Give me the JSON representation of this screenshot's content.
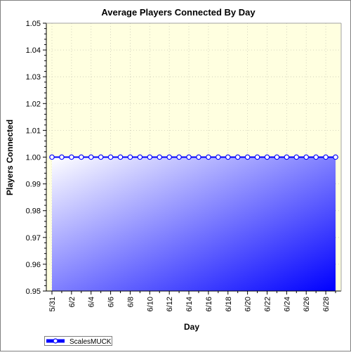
{
  "chart_data": {
    "type": "area",
    "title": "Average Players Connected By Day",
    "xlabel": "Day",
    "ylabel": "Players Connected",
    "ylim": [
      0.95,
      1.05
    ],
    "yticks": [
      "0.95",
      "0.96",
      "0.97",
      "0.98",
      "0.99",
      "1.00",
      "1.01",
      "1.02",
      "1.03",
      "1.04",
      "1.05"
    ],
    "grid": true,
    "legend_position": "bottom-left",
    "x": [
      "5/31",
      "6/1",
      "6/2",
      "6/3",
      "6/4",
      "6/5",
      "6/6",
      "6/7",
      "6/8",
      "6/9",
      "6/10",
      "6/11",
      "6/12",
      "6/13",
      "6/14",
      "6/15",
      "6/16",
      "6/17",
      "6/18",
      "6/19",
      "6/20",
      "6/21",
      "6/22",
      "6/23",
      "6/24",
      "6/25",
      "6/26",
      "6/27",
      "6/28",
      "6/29"
    ],
    "x_tick_labels": [
      "5/31",
      "6/2",
      "6/4",
      "6/6",
      "6/8",
      "6/10",
      "6/12",
      "6/14",
      "6/16",
      "6/18",
      "6/20",
      "6/22",
      "6/24",
      "6/26",
      "6/28"
    ],
    "series": [
      {
        "name": "ScalesMUCK",
        "values": [
          1,
          1,
          1,
          1,
          1,
          1,
          1,
          1,
          1,
          1,
          1,
          1,
          1,
          1,
          1,
          1,
          1,
          1,
          1,
          1,
          1,
          1,
          1,
          1,
          1,
          1,
          1,
          1,
          1,
          1
        ]
      }
    ],
    "colors": {
      "plot_background": "#ffffe0",
      "area_light": "#ffffff",
      "area_dark": "#0000ff",
      "line": "#0000ff",
      "marker_fill": "#ffffff",
      "grid": "#c8c8b4"
    }
  }
}
